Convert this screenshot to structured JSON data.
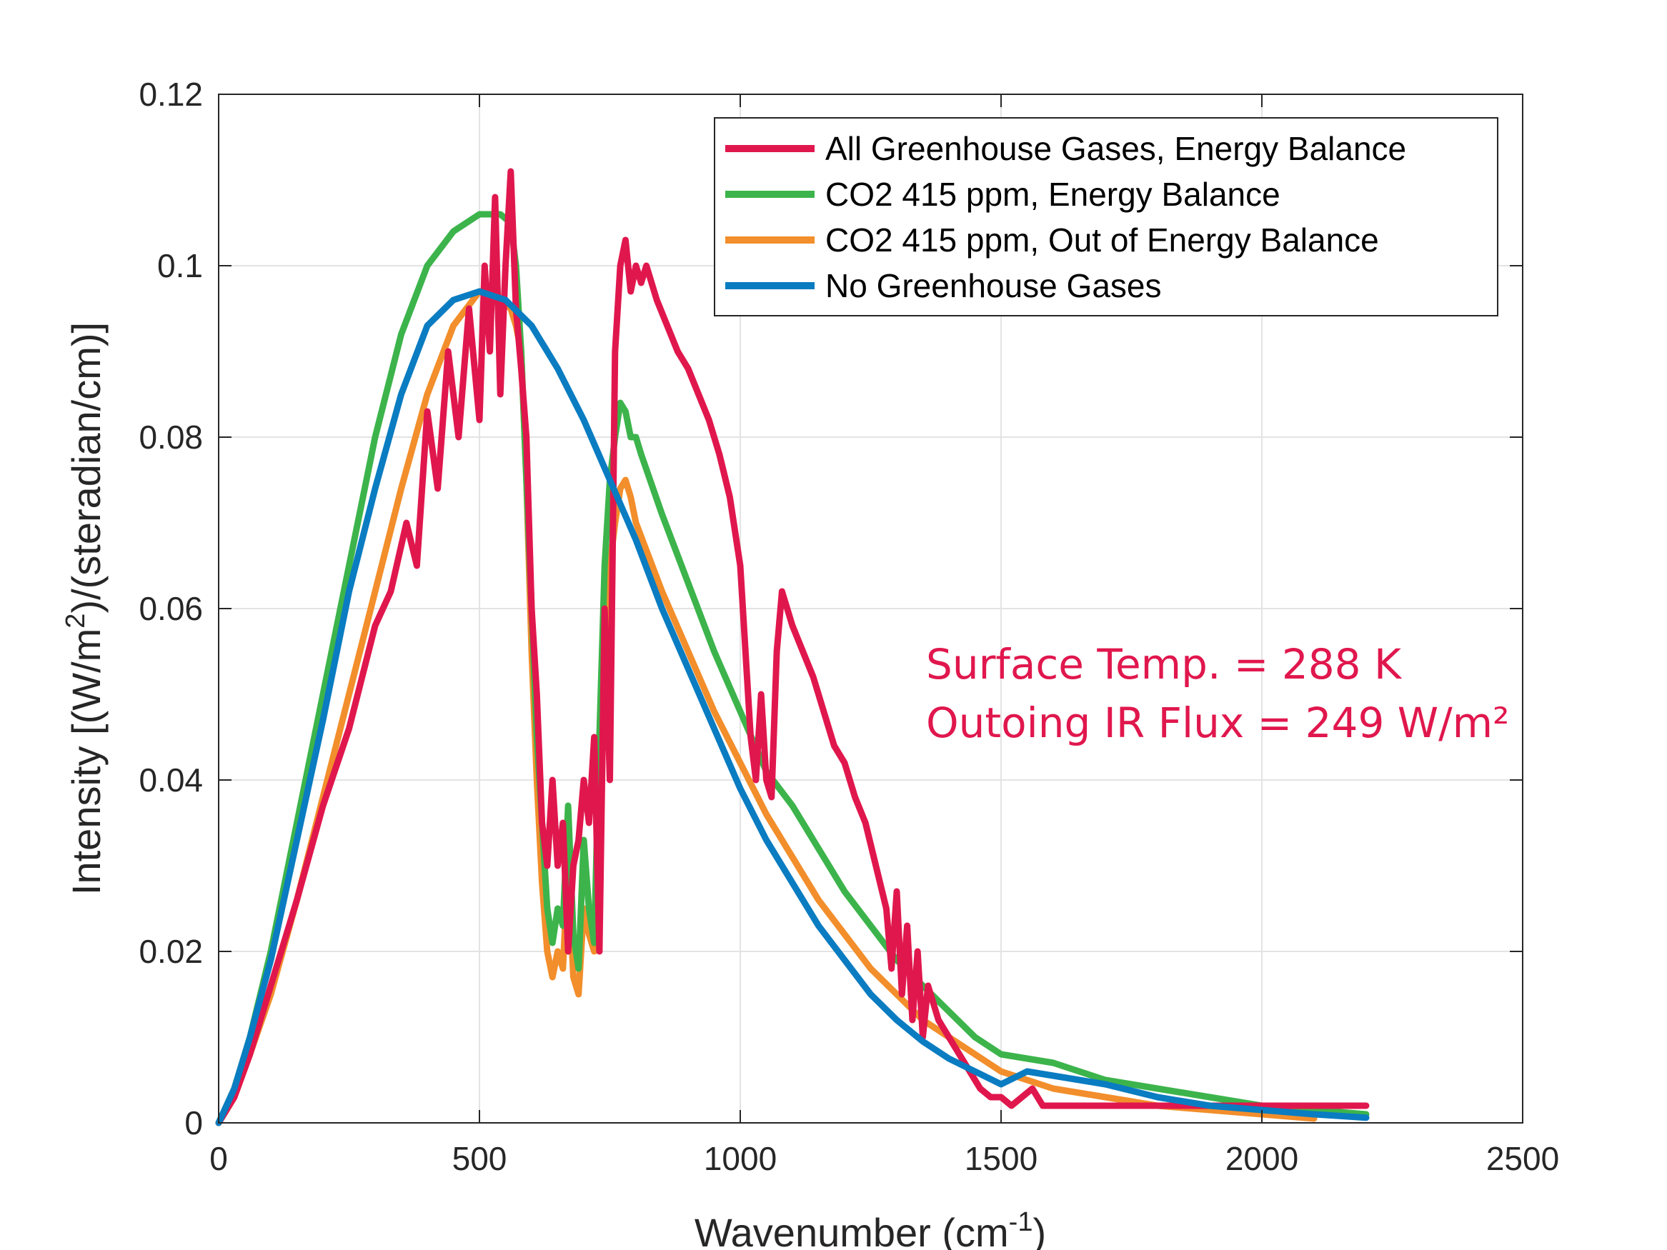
{
  "chart_data": {
    "type": "line",
    "xlabel": "Wavenumber (cm",
    "xlabel_sup": "-1",
    "xlabel_end": ")",
    "ylabel_pre": "Intensity [(W/m",
    "ylabel_sup": "2",
    "ylabel_post": ")/(steradian/cm)]",
    "xlim": [
      0,
      2500
    ],
    "ylim": [
      0,
      0.12
    ],
    "xticks": [
      "0",
      "500",
      "1000",
      "1500",
      "2000",
      "2500"
    ],
    "xtick_values": [
      0,
      500,
      1000,
      1500,
      2000,
      2500
    ],
    "yticks": [
      "0",
      "0.02",
      "0.04",
      "0.06",
      "0.08",
      "0.1",
      "0.12"
    ],
    "ytick_values": [
      0,
      0.02,
      0.04,
      0.06,
      0.08,
      0.1,
      0.12
    ],
    "grid": true,
    "legend_position": "top-right",
    "annotation": {
      "lines": [
        "Surface Temp. = 288 K",
        "Outoing IR Flux = 249 W/m²"
      ],
      "color": "#e0174d"
    },
    "series": [
      {
        "name": "All Greenhouse Gases, Energy Balance",
        "color": "#e0174d",
        "x": [
          0,
          30,
          60,
          100,
          150,
          200,
          250,
          300,
          330,
          360,
          380,
          400,
          420,
          440,
          460,
          480,
          500,
          510,
          520,
          530,
          540,
          550,
          560,
          570,
          580,
          590,
          600,
          610,
          620,
          630,
          640,
          650,
          660,
          670,
          680,
          690,
          700,
          710,
          720,
          730,
          740,
          750,
          760,
          770,
          780,
          790,
          800,
          810,
          820,
          840,
          860,
          880,
          900,
          920,
          940,
          960,
          980,
          1000,
          1010,
          1020,
          1030,
          1040,
          1050,
          1060,
          1070,
          1080,
          1090,
          1100,
          1120,
          1140,
          1160,
          1180,
          1200,
          1220,
          1240,
          1260,
          1280,
          1290,
          1300,
          1310,
          1320,
          1330,
          1340,
          1350,
          1360,
          1380,
          1400,
          1420,
          1440,
          1460,
          1480,
          1500,
          1520,
          1540,
          1560,
          1580,
          1600,
          1650,
          1700,
          1800,
          1900,
          2000,
          2100,
          2200
        ],
        "y": [
          0,
          0.003,
          0.008,
          0.016,
          0.026,
          0.037,
          0.046,
          0.058,
          0.062,
          0.07,
          0.065,
          0.083,
          0.074,
          0.09,
          0.08,
          0.095,
          0.082,
          0.1,
          0.09,
          0.108,
          0.085,
          0.1,
          0.111,
          0.095,
          0.088,
          0.08,
          0.06,
          0.05,
          0.035,
          0.03,
          0.04,
          0.03,
          0.035,
          0.02,
          0.03,
          0.033,
          0.04,
          0.035,
          0.045,
          0.02,
          0.06,
          0.04,
          0.09,
          0.1,
          0.103,
          0.097,
          0.1,
          0.098,
          0.1,
          0.096,
          0.093,
          0.09,
          0.088,
          0.085,
          0.082,
          0.078,
          0.073,
          0.065,
          0.055,
          0.045,
          0.04,
          0.05,
          0.04,
          0.038,
          0.055,
          0.062,
          0.06,
          0.058,
          0.055,
          0.052,
          0.048,
          0.044,
          0.042,
          0.038,
          0.035,
          0.03,
          0.025,
          0.018,
          0.027,
          0.015,
          0.023,
          0.012,
          0.02,
          0.01,
          0.016,
          0.012,
          0.01,
          0.008,
          0.006,
          0.004,
          0.003,
          0.003,
          0.002,
          0.003,
          0.004,
          0.002,
          0.002,
          0.002,
          0.002,
          0.002,
          0.002,
          0.002,
          0.002,
          0.002
        ]
      },
      {
        "name": "CO2 415 ppm, Energy Balance",
        "color": "#3cb44b",
        "x": [
          0,
          30,
          60,
          100,
          150,
          200,
          250,
          300,
          350,
          400,
          450,
          500,
          520,
          540,
          560,
          570,
          580,
          590,
          600,
          610,
          620,
          630,
          640,
          650,
          660,
          670,
          680,
          690,
          700,
          710,
          720,
          730,
          740,
          750,
          760,
          770,
          780,
          790,
          800,
          810,
          850,
          900,
          950,
          1000,
          1050,
          1100,
          1150,
          1200,
          1250,
          1300,
          1350,
          1400,
          1450,
          1500,
          1550,
          1600,
          1650,
          1700,
          1800,
          1900,
          2000,
          2100,
          2200
        ],
        "y": [
          0,
          0.004,
          0.01,
          0.02,
          0.035,
          0.05,
          0.065,
          0.08,
          0.092,
          0.1,
          0.104,
          0.106,
          0.106,
          0.106,
          0.105,
          0.1,
          0.09,
          0.075,
          0.06,
          0.045,
          0.035,
          0.025,
          0.021,
          0.025,
          0.023,
          0.037,
          0.022,
          0.018,
          0.033,
          0.025,
          0.021,
          0.045,
          0.065,
          0.075,
          0.08,
          0.084,
          0.083,
          0.08,
          0.08,
          0.078,
          0.071,
          0.063,
          0.055,
          0.048,
          0.041,
          0.037,
          0.032,
          0.027,
          0.023,
          0.019,
          0.016,
          0.013,
          0.01,
          0.008,
          0.0075,
          0.007,
          0.006,
          0.005,
          0.004,
          0.003,
          0.002,
          0.0015,
          0.001
        ]
      },
      {
        "name": "CO2 415 ppm, Out of Energy Balance",
        "color": "#f28e2b",
        "x": [
          0,
          30,
          60,
          100,
          150,
          200,
          250,
          300,
          350,
          400,
          450,
          500,
          520,
          540,
          560,
          570,
          580,
          590,
          600,
          610,
          620,
          630,
          640,
          650,
          660,
          670,
          680,
          690,
          700,
          710,
          720,
          730,
          740,
          750,
          760,
          770,
          780,
          790,
          800,
          850,
          900,
          950,
          1000,
          1050,
          1100,
          1150,
          1200,
          1250,
          1300,
          1350,
          1400,
          1450,
          1500,
          1550,
          1600,
          1650,
          1700,
          1800,
          1900,
          2000,
          2100
        ],
        "y": [
          0,
          0.003,
          0.008,
          0.015,
          0.026,
          0.038,
          0.05,
          0.062,
          0.074,
          0.085,
          0.093,
          0.097,
          0.097,
          0.096,
          0.095,
          0.093,
          0.09,
          0.075,
          0.055,
          0.04,
          0.028,
          0.02,
          0.017,
          0.02,
          0.018,
          0.03,
          0.017,
          0.015,
          0.025,
          0.022,
          0.02,
          0.04,
          0.055,
          0.065,
          0.07,
          0.074,
          0.075,
          0.073,
          0.07,
          0.062,
          0.055,
          0.048,
          0.042,
          0.036,
          0.031,
          0.026,
          0.022,
          0.018,
          0.015,
          0.012,
          0.01,
          0.008,
          0.006,
          0.005,
          0.004,
          0.0035,
          0.003,
          0.002,
          0.0015,
          0.001,
          0.0005
        ]
      },
      {
        "name": "No Greenhouse Gases",
        "color": "#0a7cc1",
        "x": [
          0,
          30,
          60,
          100,
          150,
          200,
          250,
          300,
          350,
          400,
          450,
          500,
          550,
          600,
          650,
          700,
          750,
          800,
          850,
          900,
          950,
          1000,
          1050,
          1100,
          1150,
          1200,
          1250,
          1300,
          1350,
          1400,
          1450,
          1500,
          1550,
          1600,
          1650,
          1700,
          1800,
          1900,
          2000,
          2100,
          2200
        ],
        "y": [
          0,
          0.004,
          0.01,
          0.019,
          0.033,
          0.047,
          0.062,
          0.074,
          0.085,
          0.093,
          0.096,
          0.097,
          0.096,
          0.093,
          0.088,
          0.082,
          0.075,
          0.068,
          0.06,
          0.053,
          0.046,
          0.039,
          0.033,
          0.028,
          0.023,
          0.019,
          0.015,
          0.012,
          0.0095,
          0.0075,
          0.006,
          0.0045,
          0.006,
          0.0055,
          0.005,
          0.0045,
          0.003,
          0.002,
          0.0015,
          0.001,
          0.0006
        ]
      }
    ]
  }
}
